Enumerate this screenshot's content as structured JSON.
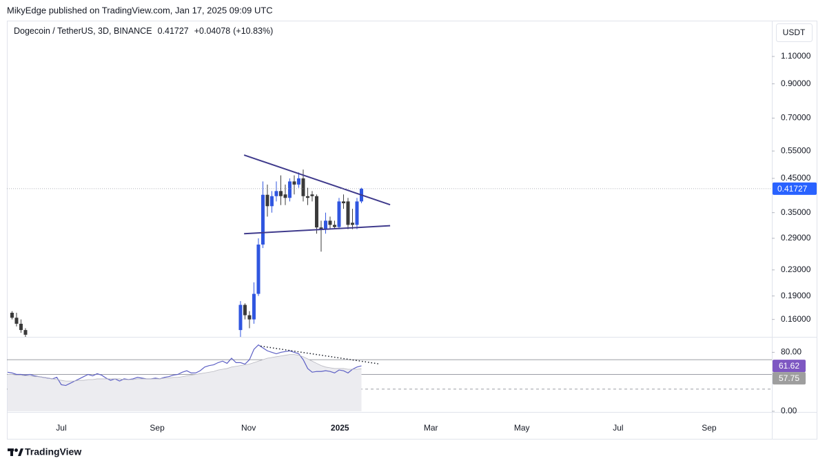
{
  "header": {
    "publisher": "MikyEdge published on TradingView.com, Jan 17, 2025 09:09 UTC"
  },
  "footer": {
    "brand": "TradingView"
  },
  "chart_data": [
    {
      "type": "candlestick",
      "title": "Dogecoin / TetherUS, 3D, BINANCE",
      "change": {
        "value": 0.04078,
        "label": "+0.04078"
      },
      "change_percent": {
        "value": 10.83,
        "label": "(+10.83%)"
      },
      "currency": "USDT",
      "x": [
        -11,
        -10,
        -9,
        -8,
        40,
        41,
        42,
        43,
        44,
        45,
        46,
        47,
        48,
        49,
        50,
        51,
        52,
        53,
        54,
        55,
        56,
        57,
        58,
        59,
        60,
        61,
        62,
        63,
        64,
        65,
        66,
        67
      ],
      "open": [
        0.168,
        0.162,
        0.155,
        0.148,
        0.148,
        0.178,
        0.165,
        0.16,
        0.193,
        0.277,
        0.399,
        0.367,
        0.395,
        0.41,
        0.4,
        0.39,
        0.44,
        0.43,
        0.45,
        0.395,
        0.4,
        0.395,
        0.314,
        0.31,
        0.33,
        0.32,
        0.315,
        0.38,
        0.38,
        0.325,
        0.32,
        0.38
      ],
      "high": [
        0.17,
        0.168,
        0.16,
        0.15,
        0.183,
        0.18,
        0.17,
        0.21,
        0.29,
        0.44,
        0.43,
        0.41,
        0.44,
        0.46,
        0.43,
        0.45,
        0.46,
        0.47,
        0.48,
        0.42,
        0.41,
        0.4,
        0.33,
        0.35,
        0.34,
        0.33,
        0.39,
        0.4,
        0.39,
        0.36,
        0.39,
        0.42
      ],
      "low": [
        0.16,
        0.152,
        0.145,
        0.14,
        0.14,
        0.16,
        0.15,
        0.155,
        0.19,
        0.27,
        0.34,
        0.35,
        0.38,
        0.37,
        0.37,
        0.38,
        0.4,
        0.42,
        0.38,
        0.37,
        0.38,
        0.3,
        0.263,
        0.3,
        0.31,
        0.31,
        0.31,
        0.36,
        0.31,
        0.31,
        0.31,
        0.375
      ],
      "close": [
        0.162,
        0.155,
        0.148,
        0.143,
        0.178,
        0.165,
        0.16,
        0.193,
        0.277,
        0.399,
        0.367,
        0.395,
        0.41,
        0.395,
        0.39,
        0.44,
        0.43,
        0.45,
        0.395,
        0.39,
        0.395,
        0.314,
        0.31,
        0.33,
        0.32,
        0.315,
        0.38,
        0.375,
        0.32,
        0.32,
        0.38,
        0.41727
      ],
      "up_color": "#3056e0",
      "down_color": "#3a3a3a",
      "last_price_color": "#2962ff",
      "log_scale": true,
      "ylim": [
        0.1415,
        1.43
      ],
      "yticks": [
        {
          "value": 1.1,
          "label": "1.10000"
        },
        {
          "value": 0.9,
          "label": "0.90000"
        },
        {
          "value": 0.7,
          "label": "0.70000"
        },
        {
          "value": 0.55,
          "label": "0.55000"
        },
        {
          "value": 0.45,
          "label": "0.45000"
        },
        {
          "value": 0.35,
          "label": "0.35000"
        },
        {
          "value": 0.29,
          "label": "0.29000"
        },
        {
          "value": 0.23,
          "label": "0.23000"
        },
        {
          "value": 0.19,
          "label": "0.19000"
        },
        {
          "value": 0.16,
          "label": "0.16000"
        }
      ],
      "xlim": [
        -12.15,
        158.62
      ],
      "xticks": [
        {
          "value": 0,
          "label": "Jul"
        },
        {
          "value": 21.4,
          "label": "Sep"
        },
        {
          "value": 41.8,
          "label": "Nov"
        },
        {
          "value": 62.2,
          "label": "2025"
        },
        {
          "value": 82.5,
          "label": "Mar"
        },
        {
          "value": 102.8,
          "label": "May"
        },
        {
          "value": 124.3,
          "label": "Jul"
        },
        {
          "value": 144.6,
          "label": "Sep"
        }
      ],
      "trendline_color": "#3f3a8c",
      "trendlines": [
        {
          "x": [
            40.8,
            73.4
          ],
          "y": [
            0.534,
            0.371
          ]
        },
        {
          "x": [
            40.8,
            73.4
          ],
          "y": [
            0.3,
            0.318
          ]
        }
      ]
    },
    {
      "type": "line",
      "x": [
        -12,
        -11,
        -10,
        -9,
        -8,
        -7,
        -6,
        -5,
        -4,
        -3,
        -2,
        -1,
        0,
        1,
        2,
        3,
        4,
        5,
        6,
        7,
        8,
        9,
        10,
        11,
        12,
        13,
        14,
        15,
        16,
        17,
        18,
        19,
        20,
        21,
        22,
        23,
        24,
        25,
        26,
        27,
        28,
        29,
        30,
        31,
        32,
        33,
        34,
        35,
        36,
        37,
        38,
        39,
        40,
        41,
        42,
        43,
        44,
        45,
        46,
        47,
        48,
        49,
        50,
        51,
        52,
        53,
        54,
        55,
        56,
        57,
        58,
        59,
        60,
        61,
        62,
        63,
        64,
        65,
        66,
        67
      ],
      "series": [
        {
          "color": "#5c5fc4",
          "label_color": "#7e57c2",
          "values": [
            53,
            52,
            50,
            50,
            49,
            50,
            48,
            47,
            46,
            45,
            44,
            46,
            36,
            35,
            38,
            41,
            44,
            47,
            50,
            48,
            51,
            49,
            45,
            42,
            44,
            41,
            44,
            43,
            44,
            46,
            45,
            44,
            44,
            45,
            44,
            46,
            47,
            49,
            50,
            53,
            55,
            52,
            52,
            55,
            60,
            62,
            63,
            66,
            68,
            65,
            72,
            66,
            66,
            64,
            70,
            84,
            90,
            86,
            82,
            80,
            78,
            80,
            81,
            82,
            80,
            78,
            70,
            58,
            53,
            54,
            54,
            55,
            54,
            52,
            56,
            55,
            52,
            57,
            60,
            61.62
          ]
        },
        {
          "color": "#b8b8c0",
          "label_color": "#9e9e9e",
          "values": [
            50,
            50,
            49,
            49,
            48,
            48,
            47,
            47,
            46,
            45,
            44,
            43,
            42,
            41,
            41,
            41,
            42,
            42,
            43,
            43,
            44,
            44,
            44,
            44,
            44,
            44,
            43,
            43,
            43,
            44,
            44,
            44,
            44,
            44,
            44,
            45,
            45,
            46,
            46,
            47,
            48,
            49,
            50,
            51,
            52,
            53,
            54,
            56,
            57,
            58,
            60,
            61,
            62,
            63,
            64,
            66,
            68,
            70,
            72,
            73,
            74,
            75,
            76,
            77,
            77,
            76,
            74,
            71,
            68,
            65,
            62,
            60,
            59,
            58,
            58,
            58,
            57,
            57,
            57,
            57.75
          ]
        }
      ],
      "ylim": [
        0,
        100
      ],
      "yticks": [
        {
          "value": 0,
          "label": "0.00"
        },
        {
          "value": 80,
          "label": "80.00"
        }
      ],
      "bands": [
        70,
        50,
        30
      ],
      "xlim": [
        -12.15,
        158.62
      ],
      "trendline": {
        "x": [
          44.5,
          71
        ],
        "y": [
          88.4,
          64.2
        ]
      }
    }
  ]
}
